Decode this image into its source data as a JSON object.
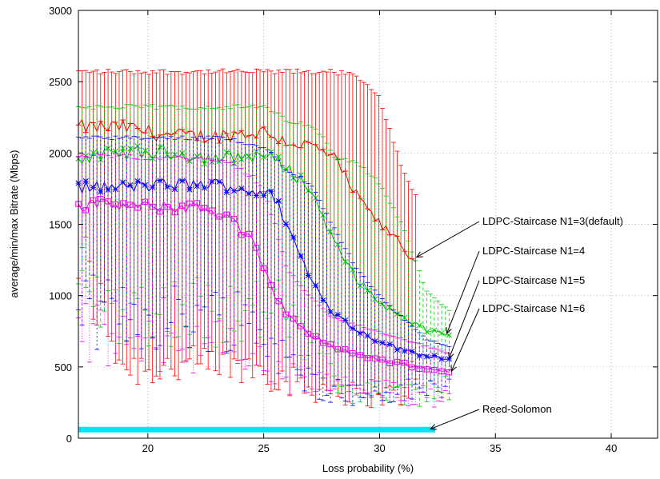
{
  "chart_data": {
    "type": "line",
    "title": "",
    "xlabel": "Loss probability (%)",
    "ylabel": "average/min/max Bitrate (Mbps)",
    "xlim": [
      17,
      42
    ],
    "ylim": [
      0,
      3000
    ],
    "xticks": [
      20,
      25,
      30,
      35,
      40
    ],
    "yticks": [
      0,
      500,
      1000,
      1500,
      2000,
      2500,
      3000
    ],
    "grid": true,
    "legend": "none",
    "series": [
      {
        "name": "LDPC-Staircase N1=3(default)",
        "color": "#ff0000",
        "marker": "plus",
        "dash": "",
        "x": [
          17,
          19,
          21,
          23,
          25,
          26,
          27,
          28,
          29,
          30,
          31,
          31.3,
          31.6
        ],
        "y": [
          2180,
          2180,
          2120,
          2120,
          2150,
          2080,
          2050,
          1970,
          1700,
          1500,
          1360,
          1240,
          1270
        ],
        "ymin": [
          1270,
          500,
          500,
          500,
          500,
          400,
          350,
          350,
          300,
          300,
          300,
          400,
          500
        ],
        "ymax": [
          2590,
          2590,
          2590,
          2590,
          2590,
          2590,
          2590,
          2590,
          2560,
          2400,
          1900,
          1800,
          1700
        ]
      },
      {
        "name": "LDPC-Staircase N1=4",
        "color": "#00cc00",
        "marker": "x",
        "dash": "4 3",
        "x": [
          17,
          19,
          21,
          23,
          25,
          26,
          27,
          27.5,
          28,
          29,
          30,
          31,
          32,
          33
        ],
        "y": [
          1960,
          2000,
          2000,
          1960,
          1990,
          1900,
          1750,
          1580,
          1380,
          1120,
          950,
          840,
          760,
          730
        ],
        "ymin": [
          1000,
          900,
          900,
          900,
          900,
          850,
          600,
          500,
          420,
          330,
          300,
          300,
          320,
          350
        ],
        "ymax": [
          2340,
          2340,
          2340,
          2340,
          2340,
          2250,
          2200,
          2150,
          2000,
          1950,
          1800,
          1500,
          1050,
          900
        ]
      },
      {
        "name": "LDPC-Staircase N1=5",
        "color": "#0000ff",
        "marker": "star",
        "dash": "2 3",
        "x": [
          17,
          19,
          21,
          23,
          24,
          25,
          25.5,
          26,
          27,
          28,
          29,
          30,
          31,
          32,
          33
        ],
        "y": [
          1760,
          1760,
          1780,
          1780,
          1750,
          1720,
          1680,
          1500,
          1120,
          880,
          760,
          680,
          620,
          580,
          560
        ],
        "ymin": [
          900,
          850,
          850,
          850,
          850,
          750,
          650,
          500,
          400,
          350,
          300,
          300,
          320,
          340,
          360
        ],
        "ymax": [
          2120,
          2120,
          2120,
          2120,
          2100,
          2050,
          2000,
          1900,
          1800,
          1500,
          1200,
          1000,
          850,
          700,
          650
        ]
      },
      {
        "name": "LDPC-Staircase N1=6",
        "color": "#ee00ee",
        "marker": "square",
        "dash": "1 2",
        "x": [
          17,
          18,
          20,
          22,
          23.5,
          24,
          24.5,
          25,
          25.5,
          26,
          27,
          28,
          29,
          30,
          31,
          32,
          33
        ],
        "y": [
          1630,
          1640,
          1620,
          1620,
          1560,
          1460,
          1380,
          1180,
          1000,
          880,
          720,
          640,
          590,
          550,
          520,
          490,
          470
        ],
        "ymin": [
          800,
          700,
          650,
          650,
          650,
          600,
          550,
          500,
          450,
          420,
          380,
          360,
          340,
          320,
          310,
          300,
          300
        ],
        "ymax": [
          2000,
          2000,
          1980,
          1980,
          1950,
          1900,
          1850,
          1750,
          1500,
          1200,
          1000,
          850,
          800,
          750,
          700,
          650,
          600
        ]
      },
      {
        "name": "Reed-Solomon",
        "color": "#00e5ee",
        "marker": "none",
        "dash": "",
        "x": [
          17,
          32.4
        ],
        "y": [
          60,
          60
        ],
        "ymin": [],
        "ymax": []
      }
    ],
    "annotations": [
      {
        "text": "LDPC-Staircase N1=3(default)",
        "series": 0,
        "target_x": 31.6,
        "target_y": 1270
      },
      {
        "text": "LDPC-Staircase N1=4",
        "series": 1,
        "target_x": 32.9,
        "target_y": 735
      },
      {
        "text": "LDPC-Staircase N1=5",
        "series": 2,
        "target_x": 33.0,
        "target_y": 560
      },
      {
        "text": "LDPC-Staircase N1=6",
        "series": 3,
        "target_x": 33.1,
        "target_y": 470
      },
      {
        "text": "Reed-Solomon",
        "series": 4,
        "target_x": 32.2,
        "target_y": 65
      }
    ]
  }
}
